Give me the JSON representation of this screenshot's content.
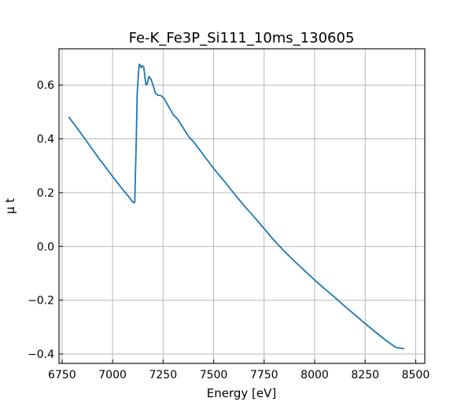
{
  "colors": {
    "series": "#1f77b4",
    "grid": "#b0b0b0",
    "axes": "#000000"
  },
  "chart_data": {
    "type": "line",
    "title": "Fe-K_Fe3P_Si111_10ms_130605",
    "xlabel": "Energy [eV]",
    "ylabel": "μ t",
    "xlim": [
      6735,
      8545
    ],
    "ylim": [
      -0.435,
      0.735
    ],
    "xticks": [
      6750,
      7000,
      7250,
      7500,
      7750,
      8000,
      8250,
      8500
    ],
    "xtick_labels": [
      "6750",
      "7000",
      "7250",
      "7500",
      "7750",
      "8000",
      "8250",
      "8500"
    ],
    "yticks": [
      -0.4,
      -0.2,
      0.0,
      0.2,
      0.4,
      0.6
    ],
    "ytick_labels": [
      "−0.4",
      "−0.2",
      "0.0",
      "0.2",
      "0.4",
      "0.6"
    ],
    "grid": true,
    "ticks_direction": "in",
    "series": [
      {
        "x": [
          6785,
          6850,
          6920,
          6990,
          7050,
          7080,
          7095,
          7105,
          7110,
          7113,
          7118,
          7122,
          7128,
          7132,
          7136,
          7142,
          7148,
          7155,
          7160,
          7166,
          7172,
          7180,
          7190,
          7200,
          7212,
          7225,
          7240,
          7255,
          7270,
          7285,
          7300,
          7320,
          7340,
          7360,
          7380,
          7400,
          7450,
          7500,
          7550,
          7600,
          7650,
          7700,
          7750,
          7800,
          7850,
          7900,
          7950,
          8000,
          8050,
          8100,
          8150,
          8200,
          8250,
          8300,
          8350,
          8400,
          8440
        ],
        "y": [
          0.48,
          0.414,
          0.34,
          0.27,
          0.212,
          0.185,
          0.17,
          0.162,
          0.165,
          0.26,
          0.42,
          0.57,
          0.64,
          0.678,
          0.675,
          0.665,
          0.672,
          0.665,
          0.63,
          0.6,
          0.605,
          0.632,
          0.622,
          0.6,
          0.57,
          0.562,
          0.561,
          0.55,
          0.53,
          0.51,
          0.49,
          0.475,
          0.452,
          0.428,
          0.405,
          0.39,
          0.34,
          0.29,
          0.245,
          0.198,
          0.152,
          0.11,
          0.066,
          0.022,
          -0.018,
          -0.055,
          -0.09,
          -0.125,
          -0.158,
          -0.19,
          -0.223,
          -0.255,
          -0.287,
          -0.318,
          -0.348,
          -0.375,
          -0.38
        ]
      }
    ]
  }
}
